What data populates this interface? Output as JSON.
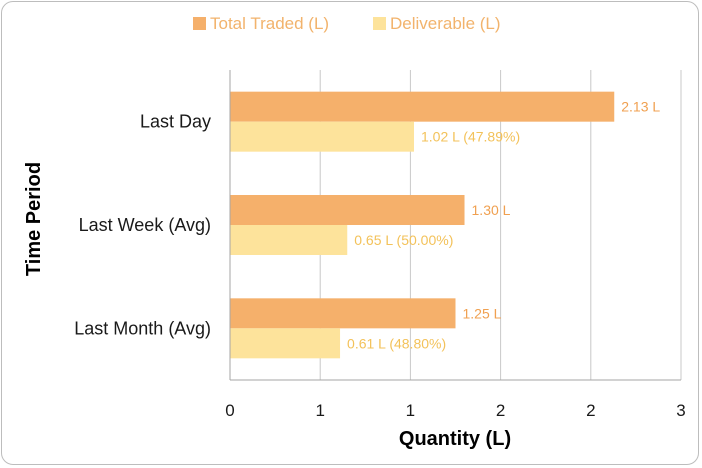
{
  "chart_data": {
    "type": "bar",
    "orientation": "horizontal",
    "title": "",
    "xlabel": "Quantity (L)",
    "ylabel": "Time Period",
    "categories": [
      "Last Day",
      "Last Week (Avg)",
      "Last Month (Avg)"
    ],
    "series": [
      {
        "name": "Total Traded (L)",
        "values": [
          2.13,
          1.3,
          1.25
        ],
        "labels": [
          "2.13 L",
          "1.30 L",
          "1.25 L"
        ],
        "color": "#f5b06b",
        "label_color": "#f0a050"
      },
      {
        "name": "Deliverable (L)",
        "values": [
          1.02,
          0.65,
          0.61
        ],
        "labels": [
          "1.02 L (47.89%)",
          "0.65 L (50.00%)",
          "0.61 L (48.80%)"
        ],
        "color": "#fde39b",
        "label_color": "#f3c25a"
      }
    ],
    "xlim": [
      0,
      2.5
    ],
    "x_ticks": [
      0,
      0.5,
      1,
      1.5,
      2,
      2.5
    ],
    "x_tick_labels": [
      "0",
      "1",
      "1",
      "2",
      "2",
      "3"
    ],
    "grid": "vertical",
    "legend_position": "top"
  }
}
